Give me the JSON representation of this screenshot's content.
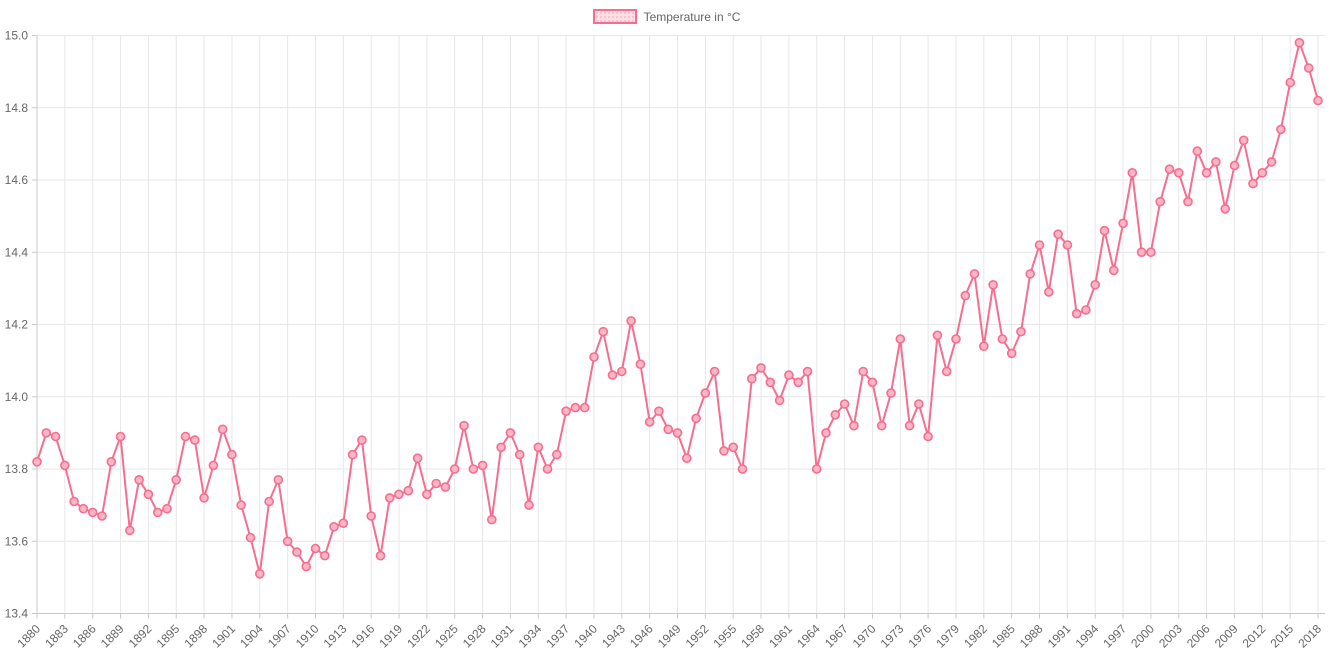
{
  "legend": {
    "label": "Temperature in °C"
  },
  "colors": {
    "line": "#f76d8f",
    "point_fill": "#fbb6c5",
    "legend_fill": "rgba(247,109,143,0.22)",
    "grid": "#e7e7e7",
    "axis": "#c9c9c9",
    "tick_text": "#666666",
    "background": "#ffffff"
  },
  "chart_data": {
    "type": "line",
    "title": "",
    "xlabel": "",
    "ylabel": "",
    "legend_position": "top",
    "grid": true,
    "ylim": [
      13.4,
      15.0
    ],
    "ytick_step": 0.2,
    "y_tick_labels": [
      "15.0",
      "14.8",
      "14.6",
      "14.4",
      "14.2",
      "14.0",
      "13.8",
      "13.6",
      "13.4"
    ],
    "x_tick_every": 3,
    "x_tick_labels": [
      "1880",
      "1883",
      "1886",
      "1889",
      "1892",
      "1895",
      "1898",
      "1901",
      "1904",
      "1907",
      "1910",
      "1913",
      "1916",
      "1919",
      "1922",
      "1925",
      "1928",
      "1931",
      "1934",
      "1937",
      "1940",
      "1943",
      "1946",
      "1949",
      "1952",
      "1955",
      "1958",
      "1961",
      "1964",
      "1967",
      "1970",
      "1973",
      "1976",
      "1979",
      "1982",
      "1985",
      "1988",
      "1991",
      "1994",
      "1997",
      "2000",
      "2003",
      "2006",
      "2009",
      "2012",
      "2015",
      "2018"
    ],
    "years": [
      1880,
      1881,
      1882,
      1883,
      1884,
      1885,
      1886,
      1887,
      1888,
      1889,
      1890,
      1891,
      1892,
      1893,
      1894,
      1895,
      1896,
      1897,
      1898,
      1899,
      1900,
      1901,
      1902,
      1903,
      1904,
      1905,
      1906,
      1907,
      1908,
      1909,
      1910,
      1911,
      1912,
      1913,
      1914,
      1915,
      1916,
      1917,
      1918,
      1919,
      1920,
      1921,
      1922,
      1923,
      1924,
      1925,
      1926,
      1927,
      1928,
      1929,
      1930,
      1931,
      1932,
      1933,
      1934,
      1935,
      1936,
      1937,
      1938,
      1939,
      1940,
      1941,
      1942,
      1943,
      1944,
      1945,
      1946,
      1947,
      1948,
      1949,
      1950,
      1951,
      1952,
      1953,
      1954,
      1955,
      1956,
      1957,
      1958,
      1959,
      1960,
      1961,
      1962,
      1963,
      1964,
      1965,
      1966,
      1967,
      1968,
      1969,
      1970,
      1971,
      1972,
      1973,
      1974,
      1975,
      1976,
      1977,
      1978,
      1979,
      1980,
      1981,
      1982,
      1983,
      1984,
      1985,
      1986,
      1987,
      1988,
      1989,
      1990,
      1991,
      1992,
      1993,
      1994,
      1995,
      1996,
      1997,
      1998,
      1999,
      2000,
      2001,
      2002,
      2003,
      2004,
      2005,
      2006,
      2007,
      2008,
      2009,
      2010,
      2011,
      2012,
      2013,
      2014,
      2015,
      2016,
      2017,
      2018
    ],
    "series": [
      {
        "name": "Temperature in °C",
        "values": [
          13.82,
          13.9,
          13.89,
          13.81,
          13.71,
          13.69,
          13.68,
          13.67,
          13.82,
          13.89,
          13.63,
          13.77,
          13.73,
          13.68,
          13.69,
          13.77,
          13.89,
          13.88,
          13.72,
          13.81,
          13.91,
          13.84,
          13.7,
          13.61,
          13.51,
          13.71,
          13.77,
          13.6,
          13.57,
          13.53,
          13.58,
          13.56,
          13.64,
          13.65,
          13.84,
          13.88,
          13.67,
          13.56,
          13.72,
          13.73,
          13.74,
          13.83,
          13.73,
          13.76,
          13.75,
          13.8,
          13.92,
          13.8,
          13.81,
          13.66,
          13.86,
          13.9,
          13.84,
          13.7,
          13.86,
          13.8,
          13.84,
          13.96,
          13.97,
          13.97,
          14.11,
          14.18,
          14.06,
          14.07,
          14.21,
          14.09,
          13.93,
          13.96,
          13.91,
          13.9,
          13.83,
          13.94,
          14.01,
          14.07,
          13.85,
          13.86,
          13.8,
          14.05,
          14.08,
          14.04,
          13.99,
          14.06,
          14.04,
          14.07,
          13.8,
          13.9,
          13.95,
          13.98,
          13.92,
          14.07,
          14.04,
          13.92,
          14.01,
          14.16,
          13.92,
          13.98,
          13.89,
          14.17,
          14.07,
          14.16,
          14.28,
          14.34,
          14.14,
          14.31,
          14.16,
          14.12,
          14.18,
          14.34,
          14.42,
          14.29,
          14.45,
          14.42,
          14.23,
          14.24,
          14.31,
          14.46,
          14.35,
          14.48,
          14.62,
          14.4,
          14.4,
          14.54,
          14.63,
          14.62,
          14.54,
          14.68,
          14.62,
          14.65,
          14.52,
          14.64,
          14.71,
          14.59,
          14.62,
          14.65,
          14.74,
          14.87,
          14.98,
          14.91,
          14.82
        ]
      }
    ]
  }
}
